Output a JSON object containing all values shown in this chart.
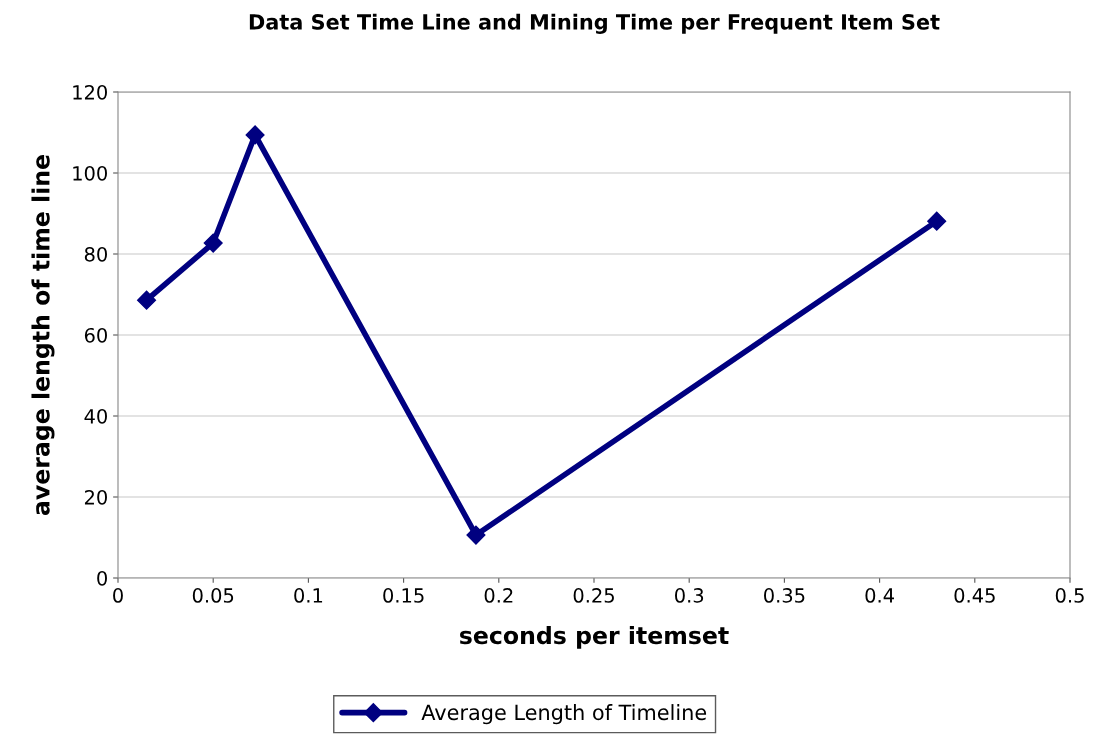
{
  "chart_data": {
    "type": "line",
    "title": "Data Set Time Line and Mining Time per Frequent Item Set",
    "xlabel": "seconds per itemset",
    "ylabel": "average length of time line",
    "series": [
      {
        "name": "Average Length of Timeline",
        "color": "#000080",
        "x": [
          0.015,
          0.05,
          0.072,
          0.188,
          0.43
        ],
        "values": [
          68.6,
          82.7,
          109.4,
          10.6,
          88.1
        ]
      }
    ],
    "xlim": [
      0,
      0.5
    ],
    "xticks": [
      0,
      0.05,
      0.1,
      0.15,
      0.2,
      0.25,
      0.3,
      0.35,
      0.4,
      0.45,
      0.5
    ],
    "ylim": [
      0,
      120
    ],
    "yticks": [
      0,
      20,
      40,
      60,
      80,
      100,
      120
    ],
    "grid": "y",
    "legend": "bottom",
    "marker": "diamond",
    "line_style": "solid"
  }
}
